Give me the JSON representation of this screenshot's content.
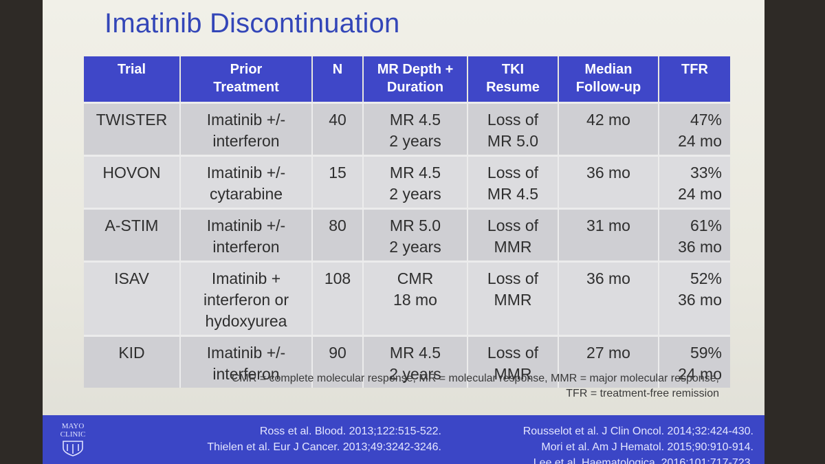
{
  "title": "Imatinib Discontinuation",
  "table": {
    "headers": [
      "Trial",
      "Prior\nTreatment",
      "N",
      "MR Depth +\nDuration",
      "TKI\nResume",
      "Median\nFollow-up",
      "TFR"
    ],
    "rows": [
      [
        "TWISTER",
        "Imatinib +/-\ninterferon",
        "40",
        "MR 4.5\n2 years",
        "Loss of\nMR 5.0",
        "42 mo",
        "47%\n24 mo"
      ],
      [
        "HOVON",
        "Imatinib +/-\ncytarabine",
        "15",
        "MR 4.5\n2 years",
        "Loss of\nMR 4.5",
        "36 mo",
        "33%\n24 mo"
      ],
      [
        "A-STIM",
        "Imatinib +/-\ninterferon",
        "80",
        "MR 5.0\n2 years",
        "Loss of\nMMR",
        "31 mo",
        "61%\n36 mo"
      ],
      [
        "ISAV",
        "Imatinib +\ninterferon or\nhydoxyurea",
        "108",
        "CMR\n18 mo",
        "Loss of\nMMR",
        "36 mo",
        "52%\n36 mo"
      ],
      [
        "KID",
        "Imatinib +/-\ninterferon",
        "90",
        "MR 4.5\n2 years",
        "Loss of\nMMR",
        "27 mo",
        "59%\n24 mo"
      ]
    ]
  },
  "footnote": "CMR = complete molecular response, MR = molecular response, MMR = major molecular response,\nTFR = treatment-free remission",
  "footer": {
    "logo_line1": "MAYO",
    "logo_line2": "CLINIC",
    "refs_left": "Ross et al. Blood. 2013;122:515-522.\nThielen et al. Eur J Cancer. 2013;49:3242-3246.",
    "refs_right": "Rousselot et al. J Clin Oncol. 2014;32:424-430.\nMori et al.  Am J Hematol. 2015;90:910-914.\nLee et al. Haematologica. 2016;101:717-723."
  },
  "colors": {
    "accent": "#3f47c8",
    "title": "#3346b8",
    "row_fill": "#cfcfd3",
    "row_fill_alt": "#dcdcdf"
  }
}
